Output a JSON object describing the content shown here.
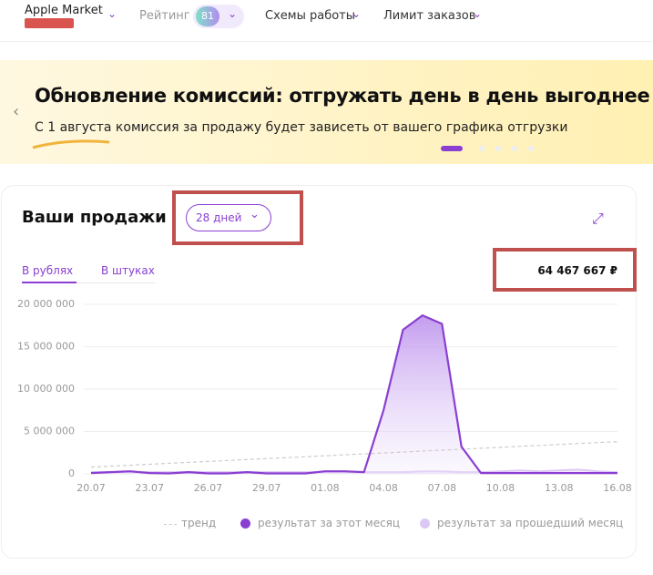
{
  "header": {
    "shop": "Apple Market",
    "rating_label": "Рейтинг",
    "rating_value": "81",
    "menu": [
      "Схемы работы",
      "Лимит заказов"
    ]
  },
  "banner": {
    "title": "Обновление комиссий: отгружать день в день выгоднее",
    "subtitle": "С 1 августа комиссия за продажу будет зависеть от вашего графика отгрузки"
  },
  "widget": {
    "title": "Ваши продажи",
    "period": "28 дней",
    "tabs": [
      "В рублях",
      "В штуках"
    ],
    "total": "64 467 667 ₽"
  },
  "chart_data": {
    "type": "line",
    "categories": [
      "20.07",
      null,
      null,
      "23.07",
      null,
      null,
      "26.07",
      null,
      null,
      "29.07",
      null,
      null,
      "01.08",
      null,
      null,
      "04.08",
      null,
      null,
      "07.08",
      null,
      null,
      "10.08",
      null,
      null,
      "13.08",
      null,
      null,
      "16.08"
    ],
    "ylim": [
      0,
      20000000
    ],
    "yticks": [
      0,
      {
        "value": 5000000,
        "label": "5 000 000"
      },
      {
        "value": 10000000,
        "label": "10 000 000"
      },
      {
        "value": 15000000,
        "label": "15 000 000"
      },
      {
        "value": 20000000,
        "label": "20 000 000"
      }
    ],
    "grid": true,
    "series": [
      {
        "name": "тренд",
        "color": "#cccccc",
        "values": [
          800000,
          911000,
          1022000,
          1133000,
          1244000,
          1356000,
          1467000,
          1578000,
          1689000,
          1800000,
          1911000,
          2022000,
          2133000,
          2244000,
          2356000,
          2467000,
          2578000,
          2689000,
          2800000,
          2911000,
          3022000,
          3133000,
          3244000,
          3356000,
          3467000,
          3578000,
          3689000,
          3800000
        ]
      },
      {
        "name": "результат за этот месяц",
        "color": "#8a3fd1",
        "values": [
          100000,
          200000,
          300000,
          100000,
          50000,
          200000,
          50000,
          50000,
          200000,
          50000,
          50000,
          50000,
          300000,
          300000,
          200000,
          7500000,
          17000000,
          18700000,
          17700000,
          3200000,
          100000,
          100000,
          100000,
          100000,
          100000,
          100000,
          100000,
          100000
        ]
      },
      {
        "name": "результат за прошедший месяц",
        "color": "#dcc8f5",
        "values": [
          200000,
          200000,
          200000,
          200000,
          200000,
          200000,
          200000,
          200000,
          200000,
          200000,
          200000,
          200000,
          200000,
          200000,
          200000,
          200000,
          200000,
          300000,
          300000,
          200000,
          200000,
          300000,
          400000,
          300000,
          400000,
          500000,
          300000,
          200000
        ]
      }
    ]
  }
}
